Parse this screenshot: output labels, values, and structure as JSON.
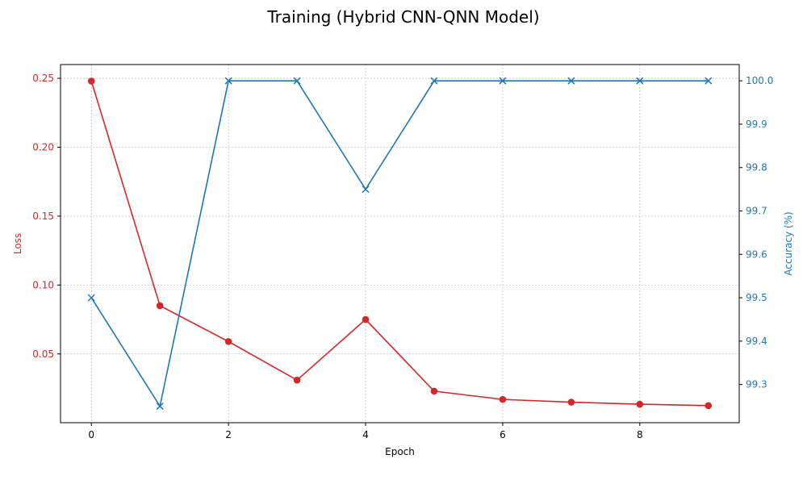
{
  "chart_data": {
    "type": "line",
    "title": "Training (Hybrid CNN-QNN Model)",
    "xlabel": "Epoch",
    "ylabel_left": "Loss",
    "ylabel_right": "Accuracy (%)",
    "x": [
      0,
      1,
      2,
      3,
      4,
      5,
      6,
      7,
      8,
      9
    ],
    "xlim": [
      -0.45,
      9.45
    ],
    "xticks": [
      "0",
      "2",
      "4",
      "6",
      "8"
    ],
    "grid": true,
    "series": [
      {
        "name": "Loss",
        "axis": "left",
        "color": "#d62728",
        "marker": "circle",
        "values": [
          0.248,
          0.085,
          0.059,
          0.031,
          0.075,
          0.023,
          0.017,
          0.015,
          0.0135,
          0.0125
        ]
      },
      {
        "name": "Accuracy (%)",
        "axis": "right",
        "color": "#1f77b4",
        "marker": "x",
        "values": [
          99.5,
          99.25,
          100.0,
          100.0,
          99.75,
          100.0,
          100.0,
          100.0,
          100.0,
          100.0
        ]
      }
    ],
    "ylim_left": [
      0.0001,
      0.26
    ],
    "yticks_left": [
      "0.05",
      "0.10",
      "0.15",
      "0.20",
      "0.25"
    ],
    "ylim_right": [
      99.212,
      100.0375
    ],
    "yticks_right": [
      "99.3",
      "99.4",
      "99.5",
      "99.6",
      "99.7",
      "99.8",
      "99.9",
      "100.0"
    ]
  }
}
